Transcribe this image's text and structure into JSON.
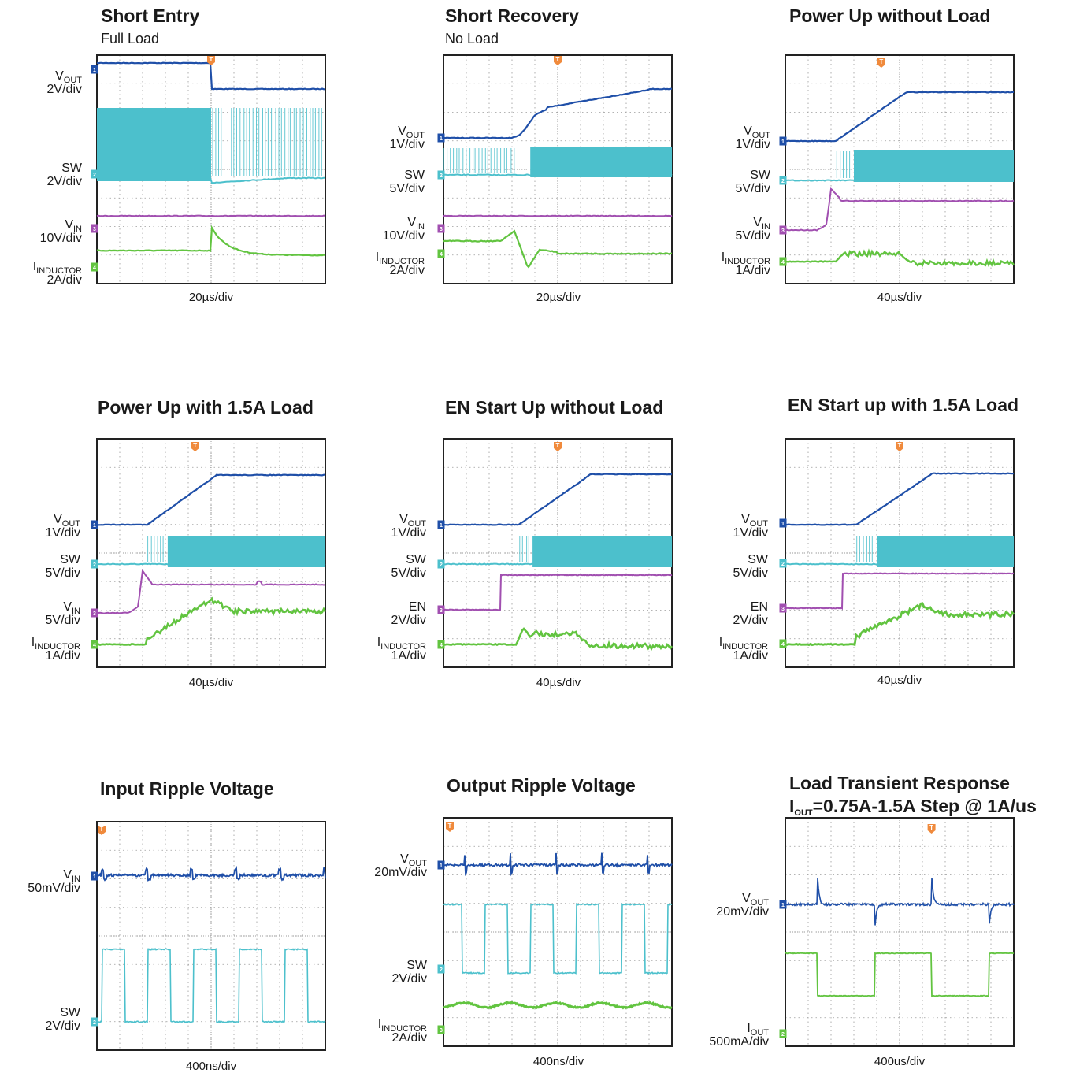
{
  "colors": {
    "vout": "#1f4fa8",
    "sw": "#4cc0cc",
    "vin": "#a14fb0",
    "en": "#a14fb0",
    "inductor": "#62c440",
    "iout": "#62c440",
    "trigger": "#f08a3c",
    "grid": "#9a9a9a",
    "frame": "#222222"
  },
  "chart_data": [
    {
      "type": "line",
      "title": "Short Entry",
      "subtitle": "Full Load",
      "timebase": "20µs/div",
      "grid": true,
      "channels": [
        {
          "label": "VOUT",
          "scale": "2V/div"
        },
        {
          "label": "SW",
          "scale": "2V/div"
        },
        {
          "label": "VIN",
          "scale": "10V/div"
        },
        {
          "label": "IINDUCTOR",
          "scale": "2A/div"
        }
      ]
    },
    {
      "type": "line",
      "title": "Short Recovery",
      "subtitle": "No Load",
      "timebase": "20µs/div",
      "grid": true,
      "channels": [
        {
          "label": "VOUT",
          "scale": "1V/div"
        },
        {
          "label": "SW",
          "scale": "5V/div"
        },
        {
          "label": "VIN",
          "scale": "10V/div"
        },
        {
          "label": "IINDUCTOR",
          "scale": "2A/div"
        }
      ]
    },
    {
      "type": "line",
      "title": "Power Up without Load",
      "subtitle": "",
      "timebase": "40µs/div",
      "grid": true,
      "channels": [
        {
          "label": "VOUT",
          "scale": "1V/div"
        },
        {
          "label": "SW",
          "scale": "5V/div"
        },
        {
          "label": "VIN",
          "scale": "5V/div"
        },
        {
          "label": "IINDUCTOR",
          "scale": "1A/div"
        }
      ]
    },
    {
      "type": "line",
      "title": "Power Up with 1.5A Load",
      "subtitle": "",
      "timebase": "40µs/div",
      "grid": true,
      "channels": [
        {
          "label": "VOUT",
          "scale": "1V/div"
        },
        {
          "label": "SW",
          "scale": "5V/div"
        },
        {
          "label": "VIN",
          "scale": "5V/div"
        },
        {
          "label": "IINDUCTOR",
          "scale": "1A/div"
        }
      ]
    },
    {
      "type": "line",
      "title": "EN Start Up without Load",
      "subtitle": "",
      "timebase": "40µs/div",
      "grid": true,
      "channels": [
        {
          "label": "VOUT",
          "scale": "1V/div"
        },
        {
          "label": "SW",
          "scale": "5V/div"
        },
        {
          "label": "EN",
          "scale": "2V/div"
        },
        {
          "label": "IINDUCTOR",
          "scale": "1A/div"
        }
      ]
    },
    {
      "type": "line",
      "title": "EN Start up with 1.5A Load",
      "subtitle": "",
      "timebase": "40µs/div",
      "grid": true,
      "channels": [
        {
          "label": "VOUT",
          "scale": "1V/div"
        },
        {
          "label": "SW",
          "scale": "5V/div"
        },
        {
          "label": "EN",
          "scale": "2V/div"
        },
        {
          "label": "IINDUCTOR",
          "scale": "1A/div"
        }
      ]
    },
    {
      "type": "line",
      "title": "Input Ripple Voltage",
      "subtitle": "",
      "timebase": "400ns/div",
      "grid": true,
      "channels": [
        {
          "label": "VIN",
          "scale": "50mV/div"
        },
        {
          "label": "SW",
          "scale": "2V/div"
        }
      ]
    },
    {
      "type": "line",
      "title": "Output Ripple Voltage",
      "subtitle": "",
      "timebase": "400ns/div",
      "grid": true,
      "channels": [
        {
          "label": "VOUT",
          "scale": "20mV/div"
        },
        {
          "label": "SW",
          "scale": "2V/div"
        },
        {
          "label": "IINDUCTOR",
          "scale": "2A/div"
        }
      ]
    },
    {
      "type": "line",
      "title": "Load Transient Response",
      "subtitle": "IOUT=0.75A-1.5A Step @ 1A/us",
      "timebase": "400us/div",
      "grid": true,
      "channels": [
        {
          "label": "VOUT",
          "scale": "20mV/div"
        },
        {
          "label": "IOUT",
          "scale": "500mA/div"
        }
      ]
    }
  ]
}
